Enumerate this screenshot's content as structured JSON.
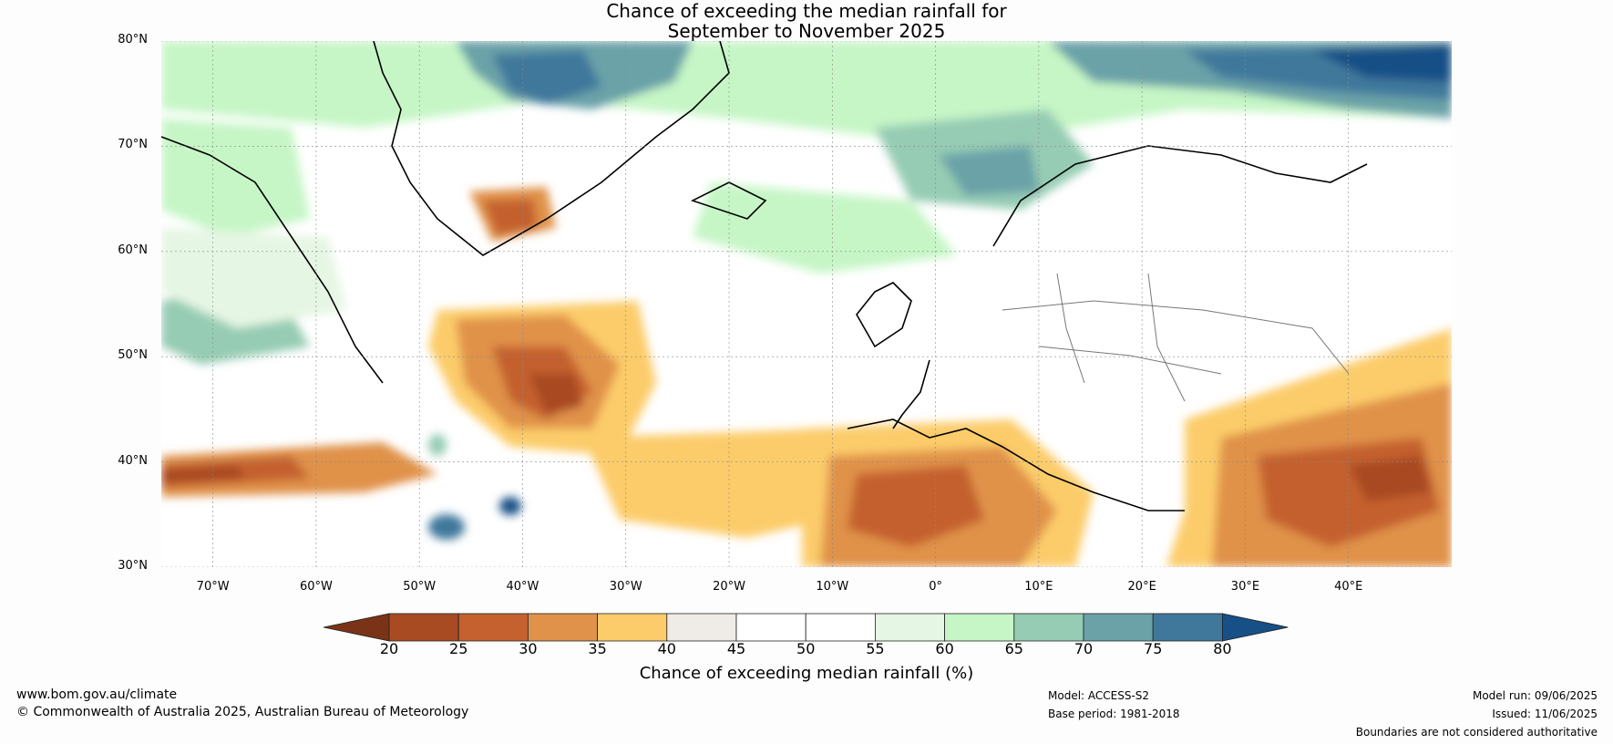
{
  "title": {
    "line1": "Chance of exceeding the median rainfall for",
    "line2": "September to November 2025"
  },
  "map": {
    "lat_labels": [
      "80°N",
      "70°N",
      "60°N",
      "50°N",
      "40°N",
      "30°N"
    ],
    "lon_labels": [
      "70°W",
      "60°W",
      "50°W",
      "40°W",
      "30°W",
      "20°W",
      "10°W",
      "0°",
      "10°E",
      "20°E",
      "30°E",
      "40°E"
    ],
    "lat_range": [
      30,
      80
    ],
    "lon_range": [
      -75,
      50
    ]
  },
  "colorbar": {
    "title": "Chance of exceeding median rainfall (%)",
    "ticks": [
      "20",
      "25",
      "30",
      "35",
      "40",
      "45",
      "50",
      "55",
      "60",
      "65",
      "70",
      "75",
      "80"
    ],
    "colors": [
      "#7a3316",
      "#a84a22",
      "#c4612e",
      "#e0924a",
      "#fccc6a",
      "#efebe7",
      "#ffffff",
      "#ffffff",
      "#e6f6e4",
      "#c6f6c6",
      "#96ccb4",
      "#6aa2a8",
      "#40789c",
      "#165086"
    ]
  },
  "footer": {
    "website": "www.bom.gov.au/climate",
    "copyright": "© Commonwealth of Australia 2025, Australian Bureau of Meteorology",
    "model": "Model: ACCESS-S2",
    "base_period": "Base period: 1981-2018",
    "model_run": "Model run: 09/06/2025",
    "issued": "Issued: 11/06/2025",
    "disclaimer": "Boundaries are not considered authoritative"
  }
}
